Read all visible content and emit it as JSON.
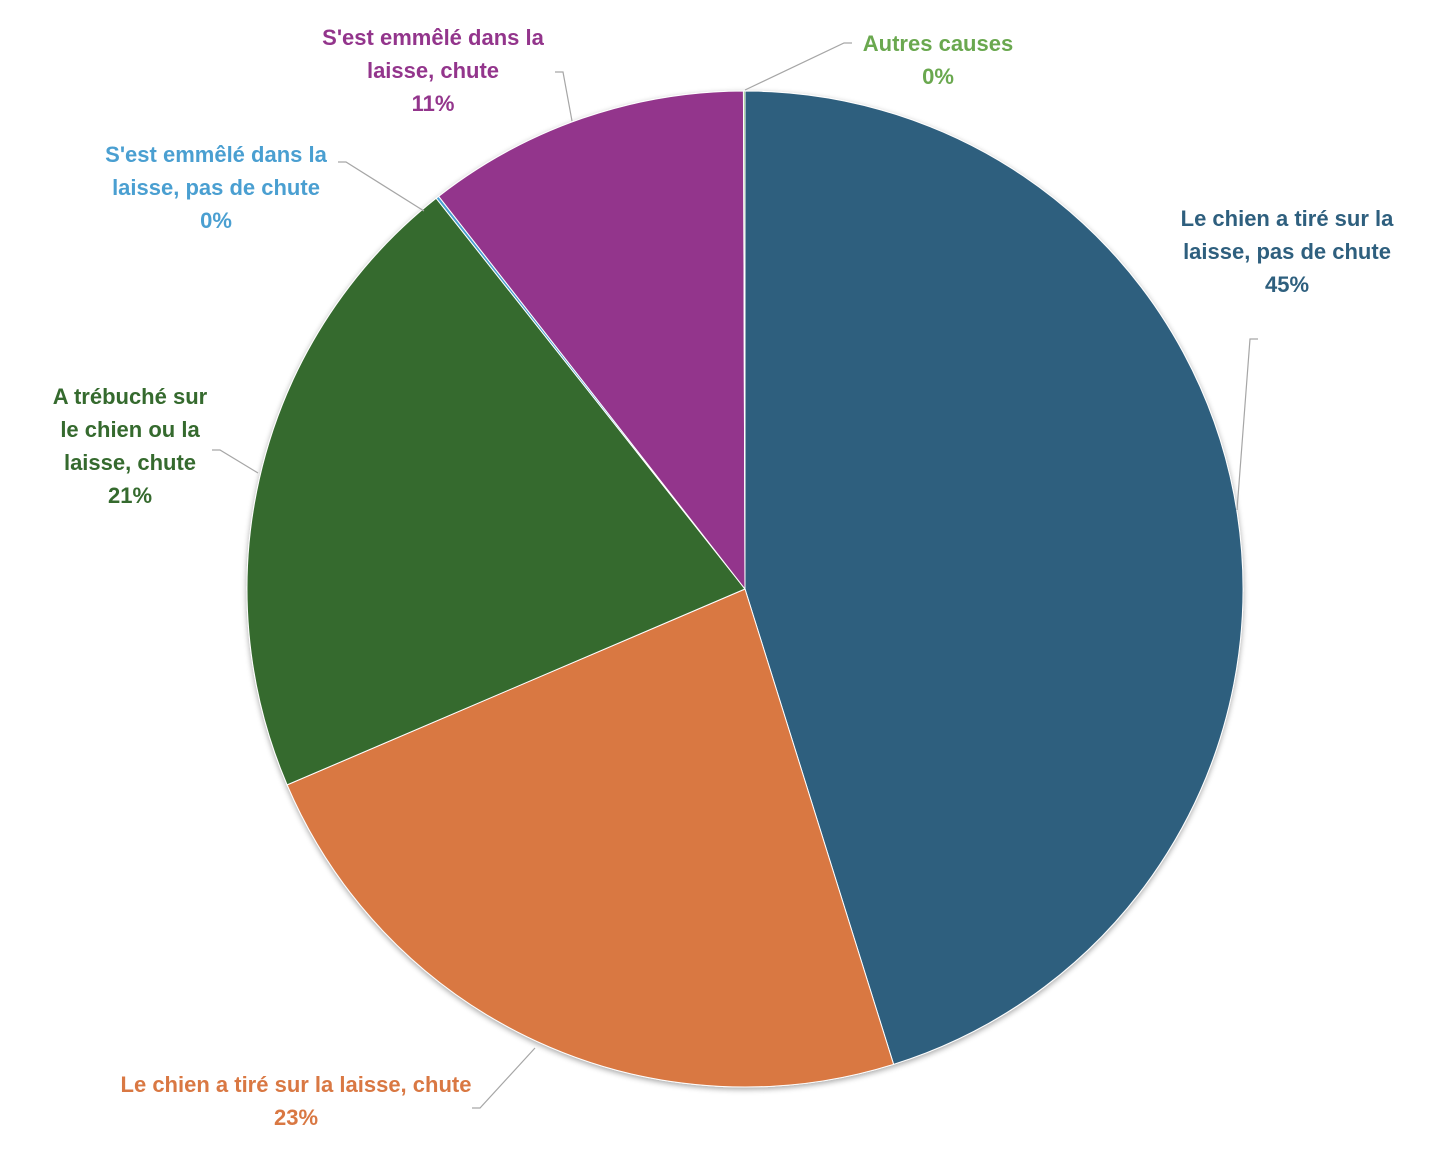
{
  "chart_data": {
    "type": "pie",
    "title": "",
    "start_angle_deg": 0,
    "direction": "clockwise",
    "slices": [
      {
        "label_lines": [
          "Le chien a tiré sur la",
          "laisse, pas de chute"
        ],
        "percent_label": "45%",
        "value": 45.2,
        "color": "#2e5f7e"
      },
      {
        "label_lines": [
          "Le chien a tiré sur la laisse, chute"
        ],
        "percent_label": "23%",
        "value": 23.4,
        "color": "#d97843"
      },
      {
        "label_lines": [
          "A trébuché sur",
          "le chien ou la",
          "laisse, chute"
        ],
        "percent_label": "21%",
        "value": 20.8,
        "color": "#356a2e"
      },
      {
        "label_lines": [
          "S'est emmêlé dans la",
          "laisse, pas de chute"
        ],
        "percent_label": "0%",
        "value": 0.1,
        "color": "#4a9fd1"
      },
      {
        "label_lines": [
          "S'est emmêlé dans la",
          "laisse, chute"
        ],
        "percent_label": "11%",
        "value": 10.5,
        "color": "#93358c"
      },
      {
        "label_lines": [
          "Autres causes"
        ],
        "percent_label": "0%",
        "value": 0.05,
        "color": "#6aa84f"
      }
    ],
    "legend": "none",
    "labels": "outside with leader lines"
  }
}
